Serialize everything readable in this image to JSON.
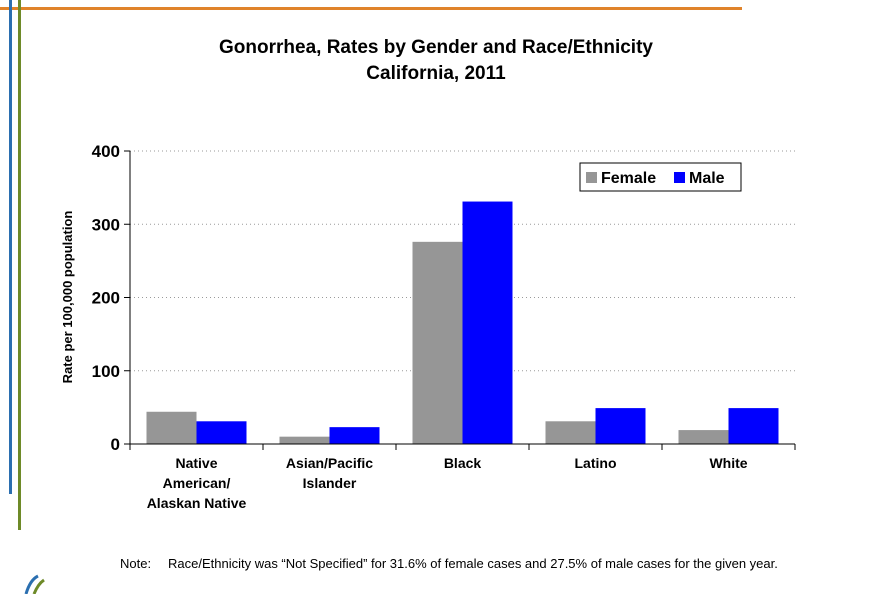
{
  "chart_data": {
    "type": "bar",
    "title": "Gonorrhea, Rates by Gender and Race/Ethnicity",
    "subtitle": "California, 2011",
    "ylabel": "Rate per 100,000 population",
    "xlabel": "",
    "ylim": [
      0,
      400
    ],
    "yticks": [
      "0",
      "100",
      "200",
      "300",
      "400"
    ],
    "ytick_values": [
      0,
      100,
      200,
      300,
      400
    ],
    "categories": [
      [
        "Native",
        "American/",
        "Alaskan Native"
      ],
      [
        "Asian/Pacific",
        "Islander"
      ],
      [
        "Black"
      ],
      [
        "Latino"
      ],
      [
        "White"
      ]
    ],
    "series": [
      {
        "name": "Female",
        "color": "#969696",
        "values": [
          44,
          10,
          276,
          31,
          19
        ]
      },
      {
        "name": "Male",
        "color": "#0000FF",
        "values": [
          31,
          23,
          331,
          49,
          49
        ]
      }
    ],
    "grid": true,
    "legend_position": "top-right"
  },
  "note": {
    "label": "Note:",
    "text": "Race/Ethnicity was “Not Specified” for 31.6% of female cases and 27.5% of male cases for the given year."
  },
  "colors": {
    "accent_orange": "#E0832A",
    "accent_blue": "#2B6FB0",
    "accent_green": "#6E8A28"
  }
}
